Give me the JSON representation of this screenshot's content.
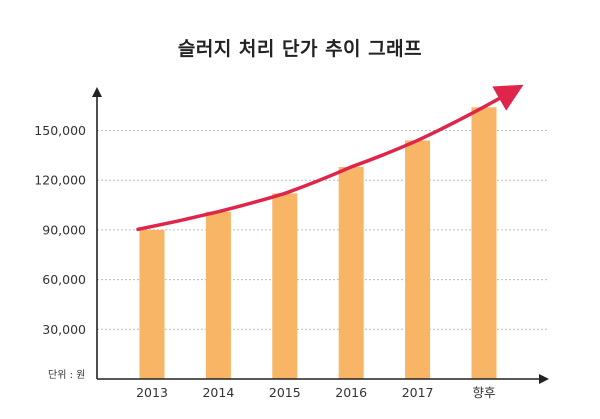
{
  "chart_data": {
    "type": "bar",
    "title": "슬러지 처리 단가 추이 그래프",
    "unit_label": "단위 : 원",
    "categories": [
      "2013",
      "2014",
      "2015",
      "2016",
      "2017",
      "향후"
    ],
    "values": [
      90000,
      101000,
      112000,
      128000,
      144000,
      164000
    ],
    "yticks": [
      30000,
      60000,
      90000,
      120000,
      150000
    ],
    "ytick_labels": [
      "30,000",
      "60,000",
      "90,000",
      "120,000",
      "150,000"
    ],
    "ylim": [
      0,
      172000
    ],
    "grid": true,
    "trend_arrow": true
  },
  "colors": {
    "bar": "#F7B565",
    "trend": "#E0254A",
    "axis": "#222222",
    "grid": "#BDBDBD",
    "text": "#333333"
  }
}
